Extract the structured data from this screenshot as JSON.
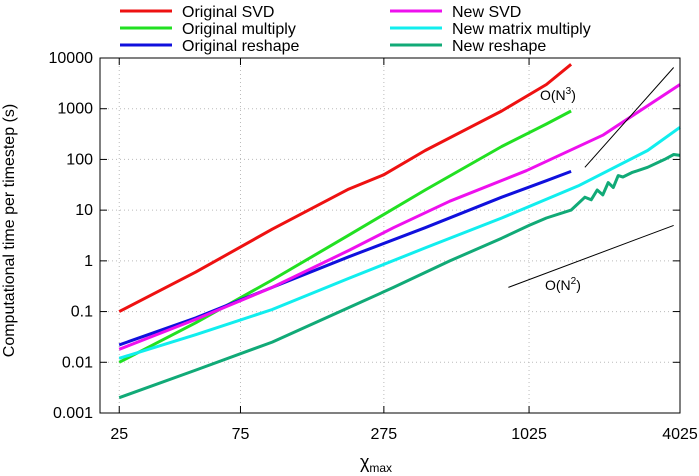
{
  "chart_data": {
    "type": "line",
    "xlabel": "χ",
    "xlabel_sub": "max",
    "ylabel": "Computational time per timestep (s)",
    "x_scale": "log",
    "y_scale": "log",
    "xlim": [
      21,
      4025
    ],
    "ylim": [
      0.001,
      10000
    ],
    "x_ticks": [
      25,
      75,
      275,
      1025,
      4025
    ],
    "x_tick_labels": [
      "25",
      "75",
      "275",
      "1025",
      "4025"
    ],
    "y_ticks": [
      0.001,
      0.01,
      0.1,
      1,
      10,
      100,
      1000,
      10000
    ],
    "y_tick_labels": [
      "0.001",
      "0.01",
      "0.1",
      "1",
      "10",
      "100",
      "1000",
      "10000"
    ],
    "grid": true,
    "legend_position": "top",
    "series": [
      {
        "name": "Original SVD",
        "color": "#ee1111",
        "x": [
          25,
          50,
          100,
          200,
          275,
          400,
          800,
          1200,
          1500
        ],
        "y": [
          0.1,
          0.6,
          4.2,
          26,
          50,
          150,
          900,
          3000,
          7500
        ]
      },
      {
        "name": "Original multiply",
        "color": "#22e022",
        "x": [
          25,
          50,
          100,
          200,
          400,
          800,
          1200,
          1500
        ],
        "y": [
          0.01,
          0.06,
          0.42,
          3.2,
          25,
          180,
          500,
          900
        ]
      },
      {
        "name": "Original reshape",
        "color": "#1010dd",
        "x": [
          25,
          50,
          75,
          100,
          200,
          400,
          800,
          1200,
          1500
        ],
        "y": [
          0.022,
          0.075,
          0.17,
          0.3,
          1.2,
          4.5,
          18,
          38,
          58
        ]
      },
      {
        "name": "New SVD",
        "color": "#ee10ee",
        "x": [
          25,
          50,
          100,
          200,
          300,
          500,
          1000,
          2000,
          4025
        ],
        "y": [
          0.018,
          0.07,
          0.3,
          1.6,
          4.5,
          15,
          60,
          300,
          3000
        ]
      },
      {
        "name": "New matrix multiply",
        "color": "#11eeee",
        "x": [
          25,
          50,
          100,
          200,
          400,
          800,
          1600,
          3000,
          4025
        ],
        "y": [
          0.012,
          0.035,
          0.11,
          0.45,
          1.8,
          7,
          30,
          150,
          430
        ]
      },
      {
        "name": "New reshape",
        "color": "#11aa77",
        "x": [
          25,
          50,
          100,
          200,
          300,
          500,
          800,
          1025,
          1200,
          1500,
          1700,
          1800,
          1900,
          2000,
          2100,
          2200,
          2300,
          2400,
          2600,
          3000,
          3500,
          3800,
          4025
        ],
        "y": [
          0.002,
          0.007,
          0.025,
          0.12,
          0.3,
          1,
          2.8,
          5,
          7,
          10,
          18,
          16,
          25,
          20,
          35,
          28,
          48,
          45,
          55,
          70,
          100,
          125,
          120
        ]
      }
    ],
    "annotations": [
      {
        "text": "O(N",
        "sup": "3",
        "suffix": ")",
        "ref_x": [
          1700,
          3800
        ],
        "ref_y": [
          70,
          6500
        ]
      },
      {
        "text": "O(N",
        "sup": "2",
        "suffix": ")",
        "ref_x": [
          850,
          3800
        ],
        "ref_y": [
          0.3,
          5
        ]
      }
    ]
  }
}
